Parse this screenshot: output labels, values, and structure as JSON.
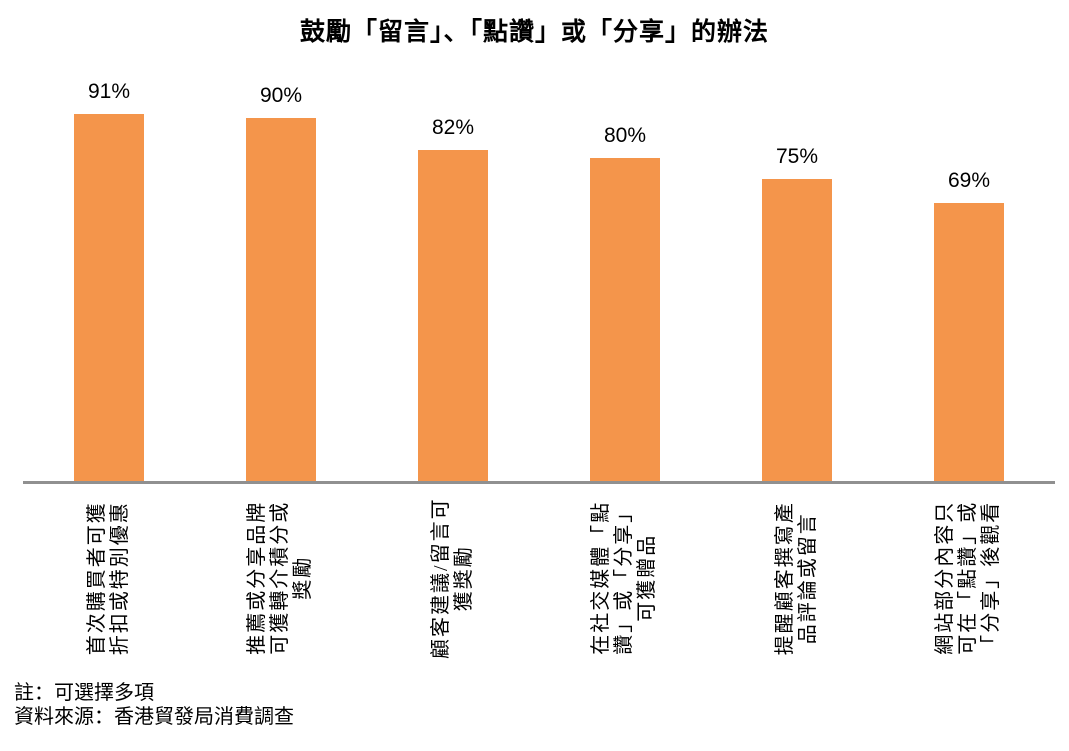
{
  "title": "鼓勵「留言」、「點讚」或「分享」的辦法",
  "notes": {
    "note": "註：可選擇多項",
    "source": "資料來源：香港貿發局消費調查"
  },
  "colors": {
    "bar": "#F4954B",
    "axis": "#909090",
    "text": "#000000",
    "background": "#FFFFFF"
  },
  "chart_data": {
    "type": "bar",
    "title": "鼓勵「留言」、「點讚」或「分享」的辦法",
    "categories": [
      "首次購買者可獲\n折扣或特別優惠",
      "推薦或分享品牌\n可獲轉介積分或\n獎勵",
      "顧客建議/留言可\n獲獎勵",
      "在社交媒體「點\n讚」或「分享」\n可獲贈品",
      "提醒顧客撰寫產\n品評論或留言",
      "網站部分內容只\n可在「點讚」或\n「分享」後觀看"
    ],
    "values": [
      91,
      90,
      82,
      80,
      75,
      69
    ],
    "value_labels": [
      "91%",
      "90%",
      "82%",
      "80%",
      "75%",
      "69%"
    ],
    "xlabel": "",
    "ylabel": "",
    "ylim": [
      0,
      100
    ],
    "unit": "%",
    "grid": false,
    "legend": "none",
    "bar_color": "#F4954B",
    "note": "註：可選擇多項",
    "source": "資料來源：香港貿發局消費調查"
  }
}
